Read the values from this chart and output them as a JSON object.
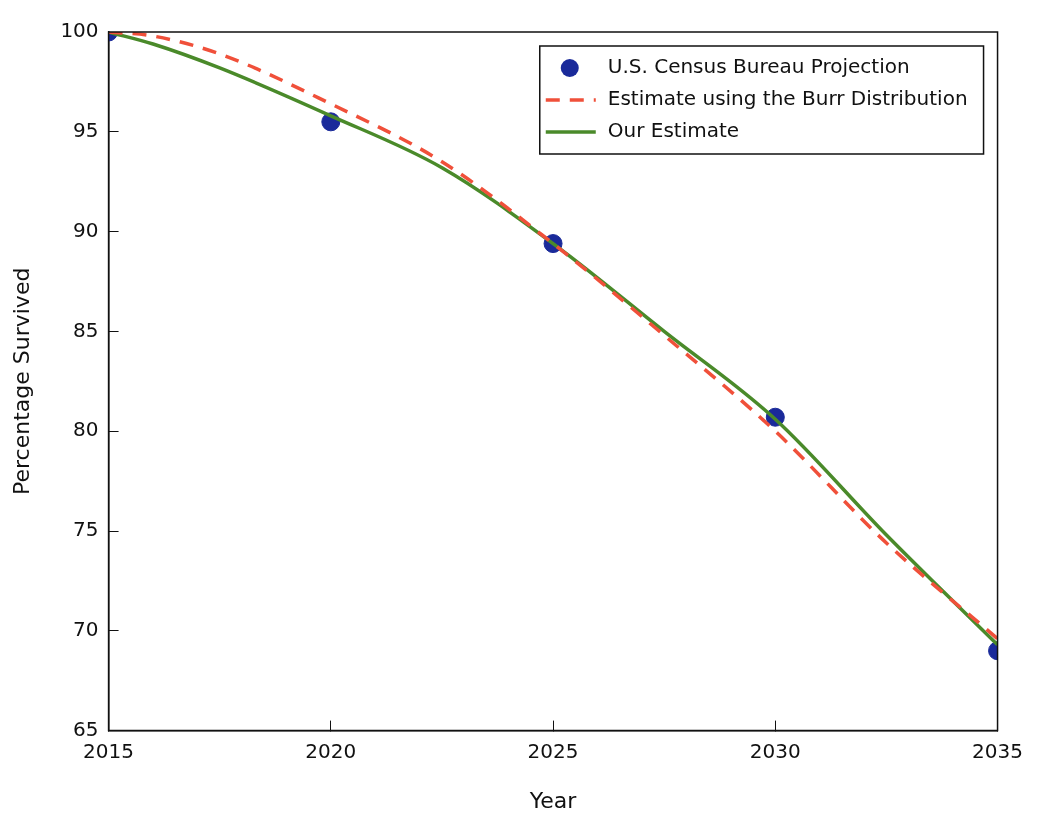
{
  "chart_data": {
    "type": "line",
    "xlabel": "Year",
    "ylabel": "Percentage Survived",
    "xlim": [
      2015,
      2035
    ],
    "xticks": [
      2015,
      2020,
      2025,
      2030,
      2035
    ],
    "ylim": [
      65,
      100
    ],
    "yticks": [
      65,
      70,
      75,
      80,
      85,
      90,
      95,
      100
    ],
    "grid": false,
    "legend": "top right",
    "series": [
      {
        "name": "U.S. Census Bureau Projection",
        "type": "scatter",
        "marker": "circle",
        "color": "#1a2a9a",
        "x": [
          2015,
          2020,
          2025,
          2030,
          2035
        ],
        "values": [
          100,
          95.5,
          89.4,
          80.7,
          69.0
        ]
      },
      {
        "name": "Estimate using the Burr Distribution",
        "type": "line",
        "line_style": "dashed",
        "color": "#f0503a",
        "x": [
          2015,
          2016,
          2017.5,
          2020,
          2022.5,
          2025,
          2027.5,
          2030,
          2032.5,
          2035
        ],
        "values": [
          100,
          99.8,
          98.9,
          96.4,
          93.5,
          89.4,
          84.8,
          80.0,
          74.4,
          69.6
        ]
      },
      {
        "name": "Our Estimate",
        "type": "line",
        "line_style": "solid",
        "color": "#4a8a2a",
        "x": [
          2015,
          2016,
          2017.5,
          2020,
          2022.5,
          2025,
          2027.5,
          2030,
          2032.5,
          2035
        ],
        "values": [
          100,
          99.4,
          98.2,
          95.8,
          93.2,
          89.4,
          85.0,
          80.6,
          74.8,
          69.3
        ]
      }
    ]
  }
}
